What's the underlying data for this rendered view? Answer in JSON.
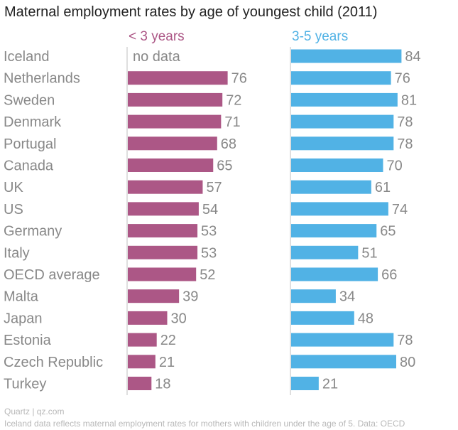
{
  "chart_data": {
    "type": "bar",
    "title": "Maternal employment rates by age of youngest child (2011)",
    "categories": [
      "Iceland",
      "Netherlands",
      "Sweden",
      "Denmark",
      "Portugal",
      "Canada",
      "UK",
      "US",
      "Germany",
      "Italy",
      "OECD average",
      "Malta",
      "Japan",
      "Estonia",
      "Czech Republic",
      "Turkey"
    ],
    "series": [
      {
        "name": "< 3 years",
        "color": "#ac5786",
        "values": [
          null,
          76,
          72,
          71,
          68,
          65,
          57,
          54,
          53,
          53,
          52,
          39,
          30,
          22,
          21,
          18
        ]
      },
      {
        "name": "3-5 years",
        "color": "#51b2e5",
        "values": [
          84,
          76,
          81,
          78,
          78,
          70,
          61,
          74,
          65,
          51,
          66,
          34,
          48,
          78,
          80,
          21
        ]
      }
    ],
    "missing_label": "no data",
    "xlim": [
      0,
      100
    ]
  },
  "footer": {
    "source": "Quartz | qz.com",
    "note": "Iceland data reflects maternal employment rates for mothers with children under the age of 5. Data: OECD"
  }
}
